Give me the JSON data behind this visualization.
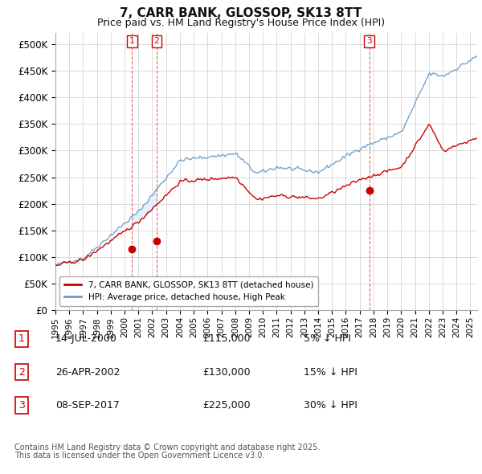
{
  "title": "7, CARR BANK, GLOSSOP, SK13 8TT",
  "subtitle": "Price paid vs. HM Land Registry's House Price Index (HPI)",
  "ylim": [
    0,
    520000
  ],
  "xlim_start": 1995.0,
  "xlim_end": 2025.5,
  "yticks": [
    0,
    50000,
    100000,
    150000,
    200000,
    250000,
    300000,
    350000,
    400000,
    450000,
    500000
  ],
  "ytick_labels": [
    "£0",
    "£50K",
    "£100K",
    "£150K",
    "£200K",
    "£250K",
    "£300K",
    "£350K",
    "£400K",
    "£450K",
    "£500K"
  ],
  "xtick_years": [
    1995,
    1996,
    1997,
    1998,
    1999,
    2000,
    2001,
    2002,
    2003,
    2004,
    2005,
    2006,
    2007,
    2008,
    2009,
    2010,
    2011,
    2012,
    2013,
    2014,
    2015,
    2016,
    2017,
    2018,
    2019,
    2020,
    2021,
    2022,
    2023,
    2024,
    2025
  ],
  "property_color": "#cc0000",
  "hpi_color": "#6699cc",
  "shade_color": "#ddeeff",
  "vline_color": "#cc0000",
  "background_color": "#ffffff",
  "grid_color": "#cccccc",
  "transactions": [
    {
      "date_year": 2000.54,
      "price": 115000,
      "label": "1",
      "date_str": "14-JUL-2000",
      "price_str": "£115,000",
      "pct_str": "5% ↓ HPI"
    },
    {
      "date_year": 2002.32,
      "price": 130000,
      "label": "2",
      "date_str": "26-APR-2002",
      "price_str": "£130,000",
      "pct_str": "15% ↓ HPI"
    },
    {
      "date_year": 2017.69,
      "price": 225000,
      "label": "3",
      "date_str": "08-SEP-2017",
      "price_str": "£225,000",
      "pct_str": "30% ↓ HPI"
    }
  ],
  "shade_between": [
    0,
    1
  ],
  "legend_property": "7, CARR BANK, GLOSSOP, SK13 8TT (detached house)",
  "legend_hpi": "HPI: Average price, detached house, High Peak",
  "footnote1": "Contains HM Land Registry data © Crown copyright and database right 2025.",
  "footnote2": "This data is licensed under the Open Government Licence v3.0."
}
